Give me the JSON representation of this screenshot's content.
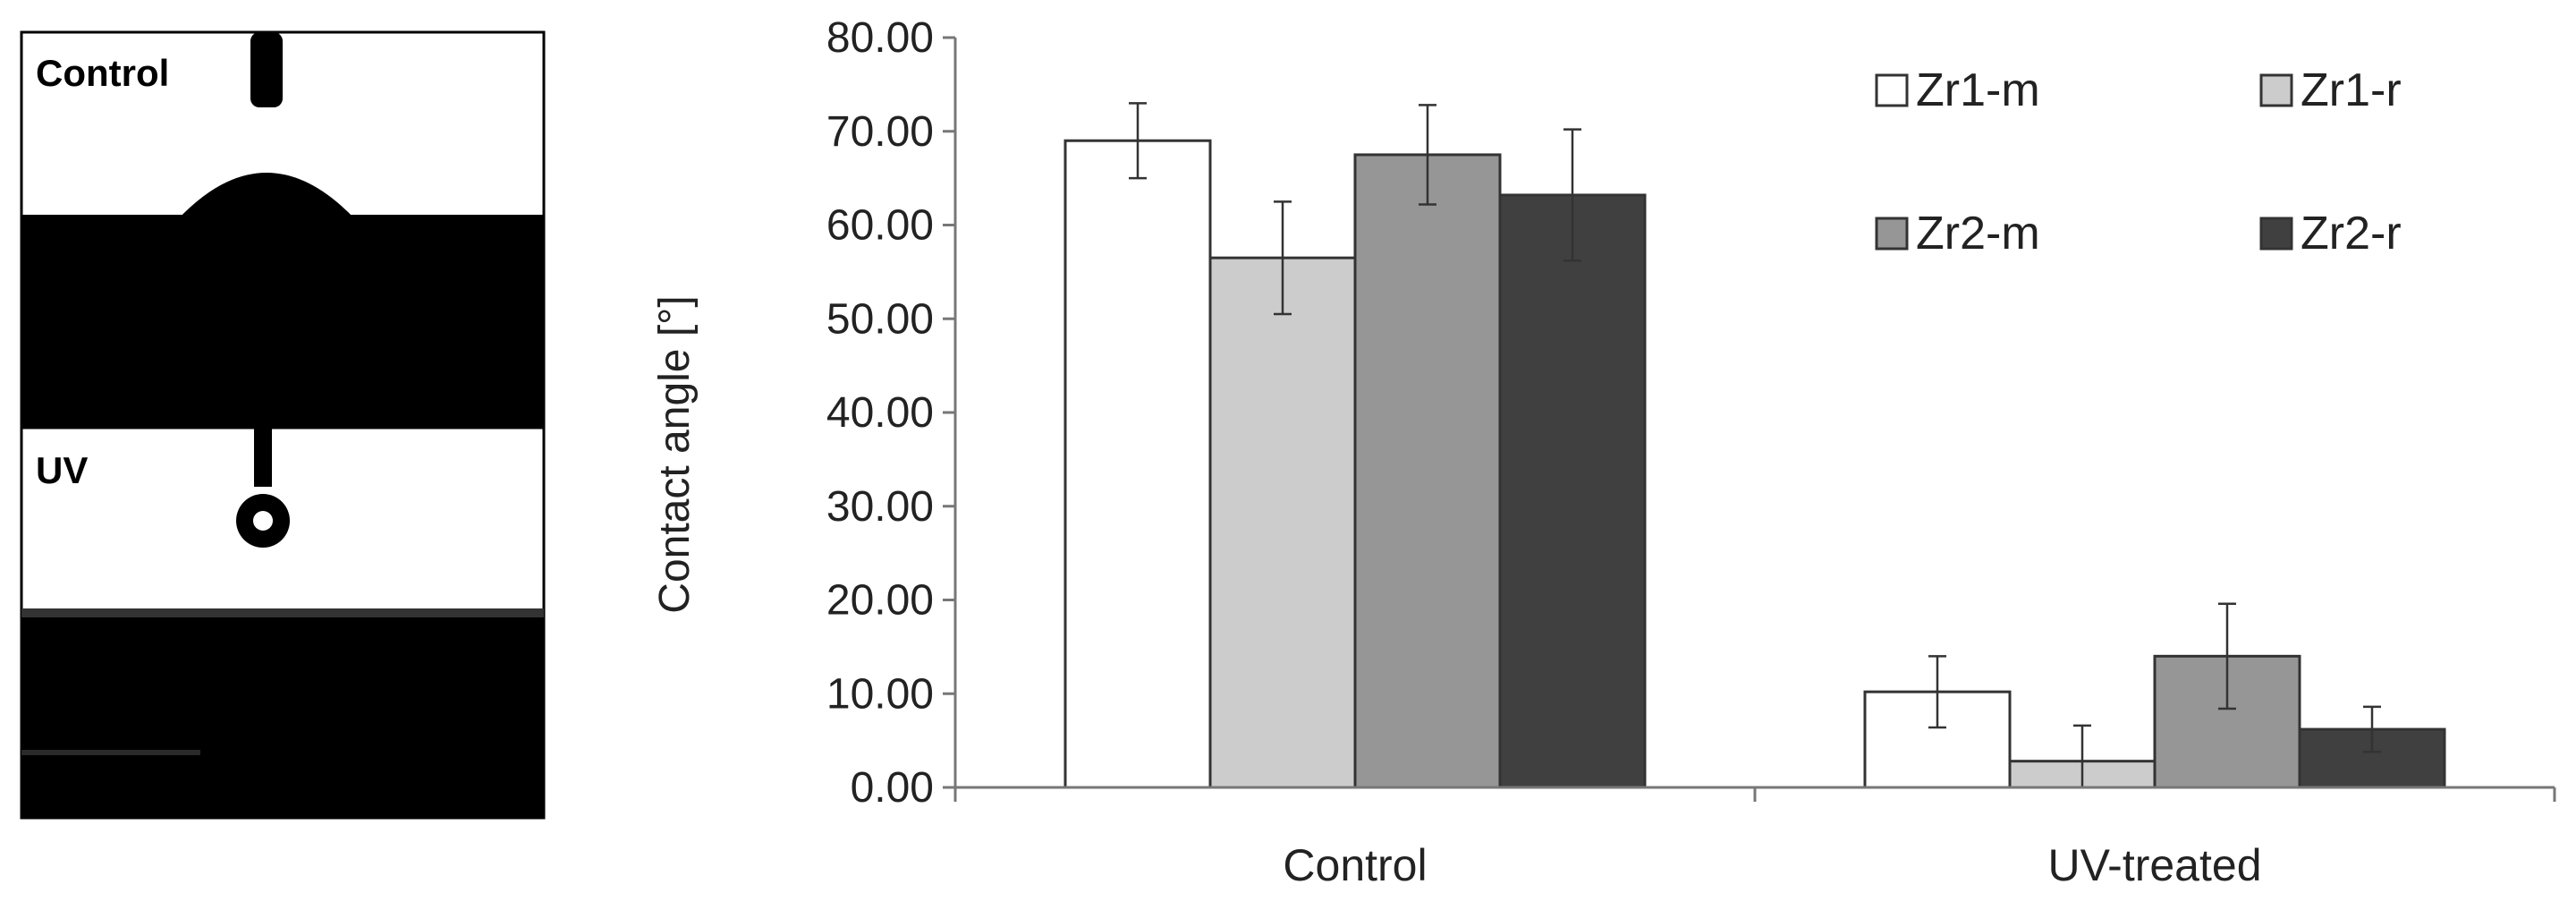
{
  "photos": {
    "control_label": "Control",
    "uv_label": "UV"
  },
  "chart_data": {
    "type": "bar",
    "title": "",
    "xlabel": "",
    "ylabel": "Contact angle [°]",
    "ylim": [
      0,
      80
    ],
    "yticks": [
      "0.00",
      "10.00",
      "20.00",
      "30.00",
      "40.00",
      "50.00",
      "60.00",
      "70.00",
      "80.00"
    ],
    "grid": false,
    "legend": "top-right",
    "categories": [
      "Control",
      "UV-treated"
    ],
    "series": [
      {
        "name": "Zr1-m",
        "color": "#ffffff",
        "values": [
          69.0,
          10.2
        ],
        "errors": [
          4.0,
          3.8
        ]
      },
      {
        "name": "Zr1-r",
        "color": "#cccccc",
        "values": [
          56.5,
          2.8
        ],
        "errors": [
          6.0,
          3.8
        ]
      },
      {
        "name": "Zr2-m",
        "color": "#969696",
        "values": [
          67.5,
          14.0
        ],
        "errors": [
          5.3,
          5.6
        ]
      },
      {
        "name": "Zr2-r",
        "color": "#404040",
        "values": [
          63.2,
          6.2
        ],
        "errors": [
          7.0,
          2.4
        ]
      }
    ]
  }
}
